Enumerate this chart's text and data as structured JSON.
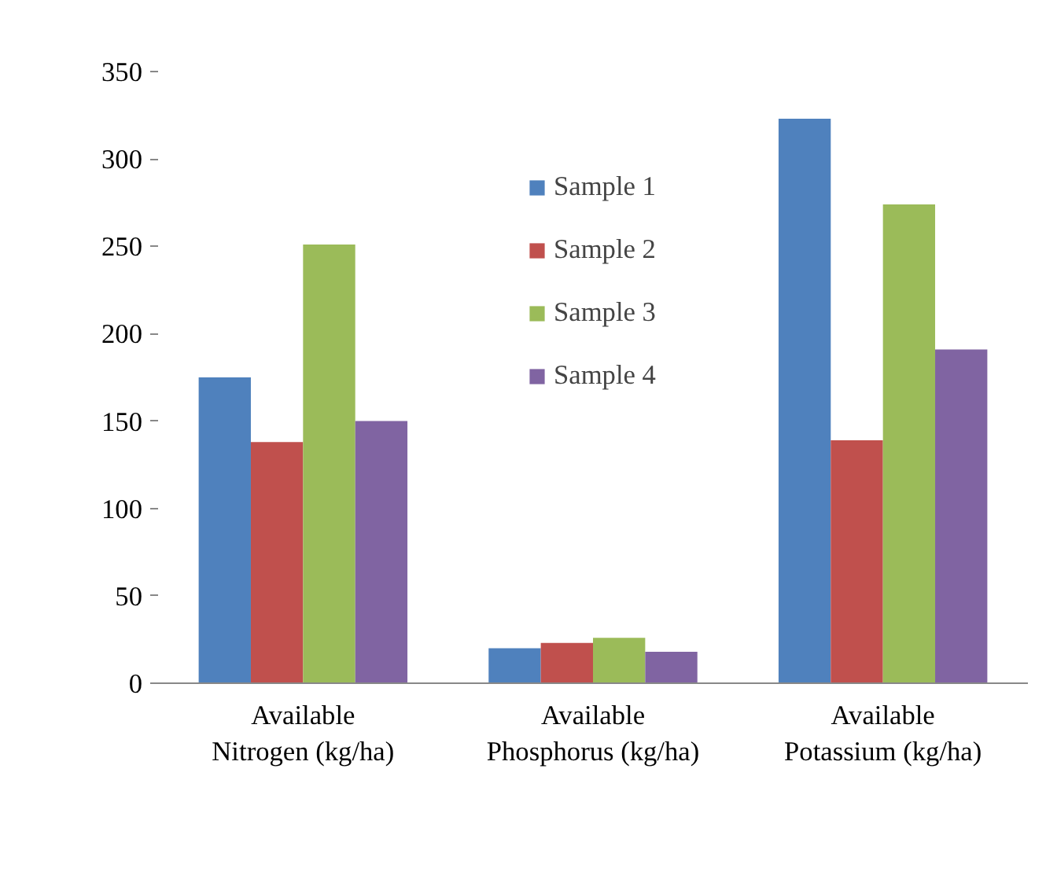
{
  "chart_data": {
    "type": "bar",
    "categories": [
      "Available Nitrogen (kg/ha)",
      "Available Phosphorus (kg/ha)",
      "Available Potassium (kg/ha)"
    ],
    "series": [
      {
        "name": "Sample 1",
        "color": "#4f81bd",
        "values": [
          175,
          20,
          323
        ]
      },
      {
        "name": "Sample 2",
        "color": "#c0504d",
        "values": [
          138,
          23,
          139
        ]
      },
      {
        "name": "Sample 3",
        "color": "#9bbb59",
        "values": [
          251,
          26,
          274
        ]
      },
      {
        "name": "Sample 4",
        "color": "#8064a2",
        "values": [
          150,
          18,
          191
        ]
      }
    ],
    "ylim": [
      0,
      350
    ],
    "yticks": [
      0,
      50,
      100,
      150,
      200,
      250,
      300,
      350
    ],
    "grid": false,
    "legend": "top"
  }
}
